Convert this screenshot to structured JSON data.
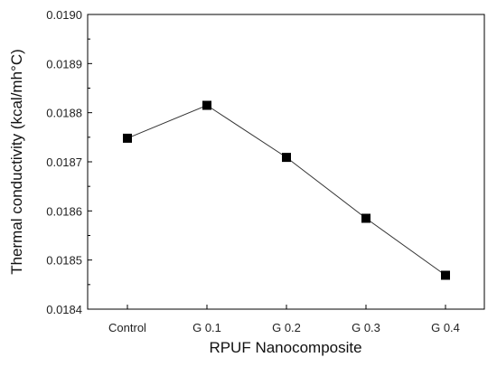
{
  "chart_data": {
    "type": "line",
    "categories": [
      "Control",
      "G 0.1",
      "G 0.2",
      "G 0.3",
      "G 0.4"
    ],
    "series": [
      {
        "values": [
          0.018748,
          0.018815,
          0.018709,
          0.018585,
          0.018469
        ]
      }
    ],
    "xlabel": "RPUF Nanocomposite",
    "ylabel": "Thermal conductivity (kcal/mh°C)",
    "ylim": [
      0.0184,
      0.019
    ],
    "yticks": [
      "0.0184",
      "0.0185",
      "0.0186",
      "0.0187",
      "0.0188",
      "0.0189",
      "0.0190"
    ],
    "grid": false,
    "marker": "square",
    "line_color": "#333333",
    "marker_color": "#000000"
  }
}
